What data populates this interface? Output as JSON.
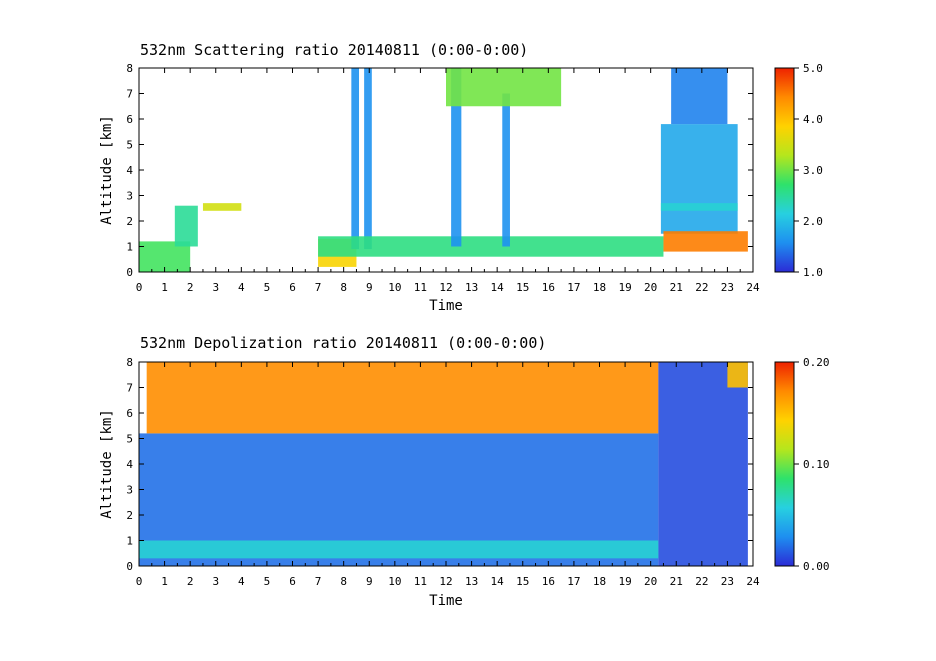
{
  "chart_data": [
    {
      "type": "heatmap",
      "title": "532nm Scattering ratio  20140811 (0:00-0:00)",
      "xlabel": "Time",
      "ylabel": "Altitude [km]",
      "xlim": [
        0,
        24
      ],
      "ylim": [
        0,
        8
      ],
      "x_ticks": [
        "0",
        "1",
        "2",
        "3",
        "4",
        "5",
        "6",
        "7",
        "8",
        "9",
        "10",
        "11",
        "12",
        "13",
        "14",
        "15",
        "16",
        "17",
        "18",
        "19",
        "20",
        "21",
        "22",
        "23",
        "24"
      ],
      "y_ticks": [
        "0",
        "1",
        "2",
        "3",
        "4",
        "5",
        "6",
        "7",
        "8"
      ],
      "colorbar": {
        "min": 1.0,
        "max": 5.0,
        "tick_labels": [
          "1.0",
          "2.0",
          "3.0",
          "4.0",
          "5.0"
        ]
      },
      "colorscale": [
        "#2b2bd6",
        "#1e8ff0",
        "#27d0e0",
        "#2ee26b",
        "#b5e61d",
        "#ffd200",
        "#ff8a00",
        "#ee2200"
      ],
      "features": [
        {
          "t0": 0.0,
          "t1": 2.0,
          "h0": 0.0,
          "h1": 1.2,
          "value": 2.8
        },
        {
          "t0": 1.4,
          "t1": 2.3,
          "h0": 1.0,
          "h1": 2.6,
          "value": 2.5
        },
        {
          "t0": 2.5,
          "t1": 4.0,
          "h0": 2.4,
          "h1": 2.7,
          "value": 3.5
        },
        {
          "t0": 7.0,
          "t1": 8.5,
          "h0": 0.2,
          "h1": 1.3,
          "value": 3.8
        },
        {
          "t0": 8.3,
          "t1": 8.6,
          "h0": 0.9,
          "h1": 8.0,
          "value": 1.6
        },
        {
          "t0": 8.8,
          "t1": 9.1,
          "h0": 0.9,
          "h1": 8.0,
          "value": 1.6
        },
        {
          "t0": 7.0,
          "t1": 20.5,
          "h0": 0.6,
          "h1": 1.4,
          "value": 2.6
        },
        {
          "t0": 12.2,
          "t1": 12.6,
          "h0": 1.0,
          "h1": 8.0,
          "value": 1.6
        },
        {
          "t0": 14.2,
          "t1": 14.5,
          "h0": 1.0,
          "h1": 7.0,
          "value": 1.6
        },
        {
          "t0": 12.0,
          "t1": 16.5,
          "h0": 6.5,
          "h1": 8.0,
          "value": 3.0
        },
        {
          "t0": 20.4,
          "t1": 23.4,
          "h0": 1.5,
          "h1": 5.8,
          "value": 1.8
        },
        {
          "t0": 20.4,
          "t1": 23.4,
          "h0": 2.4,
          "h1": 2.7,
          "value": 2.2
        },
        {
          "t0": 20.8,
          "t1": 23.0,
          "h0": 5.8,
          "h1": 8.0,
          "value": 1.5
        },
        {
          "t0": 20.5,
          "t1": 23.8,
          "h0": 0.8,
          "h1": 1.6,
          "value": 4.5
        }
      ]
    },
    {
      "type": "heatmap",
      "title": "532nm Depolization ratio  20140811 (0:00-0:00)",
      "xlabel": "Time",
      "ylabel": "Altitude [km]",
      "xlim": [
        0,
        24
      ],
      "ylim": [
        0,
        8
      ],
      "x_ticks": [
        "0",
        "1",
        "2",
        "3",
        "4",
        "5",
        "6",
        "7",
        "8",
        "9",
        "10",
        "11",
        "12",
        "13",
        "14",
        "15",
        "16",
        "17",
        "18",
        "19",
        "20",
        "21",
        "22",
        "23",
        "24"
      ],
      "y_ticks": [
        "0",
        "1",
        "2",
        "3",
        "4",
        "5",
        "6",
        "7",
        "8"
      ],
      "colorbar": {
        "min": 0.0,
        "max": 0.2,
        "tick_labels": [
          "0.00",
          "0.10",
          "0.20"
        ]
      },
      "colorscale": [
        "#2b2bd6",
        "#1e8ff0",
        "#27d0e0",
        "#2ee26b",
        "#b5e61d",
        "#ffd200",
        "#ff8a00",
        "#ee2200"
      ],
      "features": [
        {
          "t0": 0.0,
          "t1": 20.3,
          "h0": 0.0,
          "h1": 5.2,
          "value": 0.02
        },
        {
          "t0": 0.3,
          "t1": 20.3,
          "h0": 5.2,
          "h1": 8.0,
          "value": 0.17
        },
        {
          "t0": 20.3,
          "t1": 23.8,
          "h0": 0.0,
          "h1": 8.0,
          "value": 0.01
        },
        {
          "t0": 0.0,
          "t1": 20.3,
          "h0": 0.3,
          "h1": 1.0,
          "value": 0.06
        },
        {
          "t0": 23.0,
          "t1": 23.8,
          "h0": 7.0,
          "h1": 8.0,
          "value": 0.15
        }
      ]
    }
  ]
}
